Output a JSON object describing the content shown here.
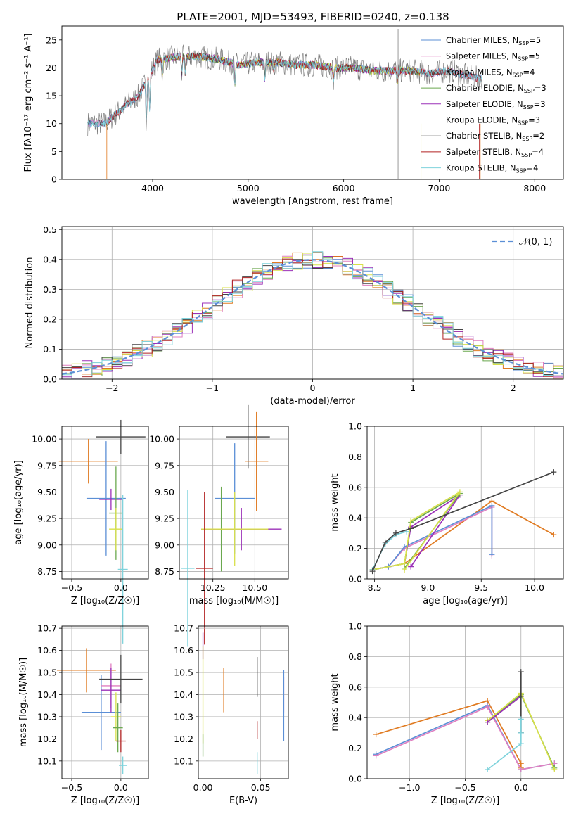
{
  "figure_title": "PLATE=2001, MJD=53493, FIBERID=0240, z=0.138",
  "colors": {
    "Chabrier MILES": "#5b8fd6",
    "Salpeter MILES": "#e07fc0",
    "Kroupa MILES": "#7f7f7f",
    "Chabrier ELODIE": "#6aa84f",
    "Salpeter ELODIE": "#9b30b8",
    "Kroupa ELODIE": "#d8e04a",
    "Chabrier STELIB": "#444444",
    "Salpeter STELIB": "#b22222",
    "Kroupa STELIB": "#7fd3dc",
    "orange": "#e07b22"
  },
  "chart_data": [
    {
      "id": "spectrum",
      "type": "line",
      "xlabel": "wavelength [Angstrom, rest frame]",
      "ylabel": "Flux [fλ10⁻¹⁷ erg cm⁻² s⁻¹ A⁻¹]",
      "xlim": [
        3050,
        8300
      ],
      "ylim": [
        0,
        27.5
      ],
      "xticks": [
        4000,
        5000,
        6000,
        7000,
        8000
      ],
      "yticks": [
        0,
        5,
        10,
        15,
        20,
        25
      ],
      "grid": false,
      "legend_position": "top-right",
      "legend": [
        {
          "name": "Chabrier MILES",
          "nssp": "5"
        },
        {
          "name": "Salpeter MILES",
          "nssp": "5"
        },
        {
          "name": "Kroupa MILES",
          "nssp": "4"
        },
        {
          "name": "Chabrier ELODIE",
          "nssp": "3"
        },
        {
          "name": "Salpeter ELODIE",
          "nssp": "3"
        },
        {
          "name": "Kroupa ELODIE",
          "nssp": "3"
        },
        {
          "name": "Chabrier STELIB",
          "nssp": "2"
        },
        {
          "name": "Salpeter STELIB",
          "nssp": "4"
        },
        {
          "name": "Kroupa STELIB",
          "nssp": "4"
        }
      ],
      "continuum_wavelength": [
        3320,
        3500,
        3700,
        3850,
        3950,
        4050,
        4300,
        4500,
        4700,
        4900,
        5100,
        5300,
        5500,
        5700,
        5900,
        6100,
        6300,
        6500,
        6700,
        6900,
        7100,
        7300,
        7450
      ],
      "continuum_flux": [
        10,
        10,
        13,
        15,
        18,
        21.5,
        22,
        22,
        21.5,
        20.5,
        21,
        21,
        20.5,
        20.5,
        20,
        20,
        19.5,
        19.5,
        19.5,
        19,
        19.5,
        18.5,
        18
      ]
    },
    {
      "id": "residuals",
      "type": "histogram",
      "xlabel": "(data-model)/error",
      "ylabel": "Normed distribution",
      "xlim": [
        -2.5,
        2.5
      ],
      "ylim": [
        0,
        0.51
      ],
      "xticks": [
        -2,
        -1,
        0,
        1,
        2
      ],
      "yticks": [
        0,
        0.1,
        0.2,
        0.3,
        0.4,
        0.5
      ],
      "grid": true,
      "legend_position": "top-right",
      "reference_curve": "𝒩(0, 1)",
      "bin_width": 0.1
    },
    {
      "id": "age-vs-Z",
      "type": "scatter",
      "xlabel": "Z [log₁₀(Z/Z☉)]",
      "ylabel": "age  [log₁₀(age/yr)]",
      "xlim": [
        -0.6,
        0.28
      ],
      "ylim": [
        8.68,
        10.12
      ],
      "xticks": [
        -0.5,
        0
      ],
      "yticks": [
        8.75,
        9.0,
        9.25,
        9.5,
        9.75,
        10.0
      ],
      "grid": true,
      "errorbars": [
        {
          "c": "orange",
          "x": -0.33,
          "xerr": 0.3,
          "y": 9.79,
          "yerr": 0.21
        },
        {
          "c": "Chabrier MILES",
          "x": -0.15,
          "xerr": 0.2,
          "y": 9.44,
          "yerr": 0.54
        },
        {
          "c": "Salpeter ELODIE",
          "x": -0.1,
          "xerr": 0.12,
          "y": 9.43,
          "yerr": 0.1
        },
        {
          "c": "Chabrier ELODIE",
          "x": -0.05,
          "xerr": 0.07,
          "y": 9.3,
          "yerr": 0.44
        },
        {
          "c": "Kroupa ELODIE",
          "x": -0.05,
          "xerr": 0.07,
          "y": 9.15,
          "yerr": 0.2
        },
        {
          "c": "Chabrier STELIB",
          "x": 0.0,
          "xerr": 0.25,
          "y": 10.02,
          "yerr": 0.16
        },
        {
          "c": "Kroupa STELIB",
          "x": 0.02,
          "xerr": 0.05,
          "y": 8.77,
          "yerr": 0.7
        }
      ]
    },
    {
      "id": "age-vs-mass",
      "type": "scatter",
      "xlabel": "mass [log₁₀(M/M☉)]",
      "ylabel": "",
      "xlim": [
        10.05,
        10.7
      ],
      "ylim": [
        8.68,
        10.12
      ],
      "xticks": [
        10.25,
        10.5
      ],
      "yticks": [
        8.75,
        9.0,
        9.25,
        9.5,
        9.75,
        10.0
      ],
      "grid": true,
      "errorbars": [
        {
          "c": "Chabrier STELIB",
          "x": 10.46,
          "xerr": 0.13,
          "y": 10.02,
          "yerr": 0.3
        },
        {
          "c": "orange",
          "x": 10.51,
          "xerr": 0.07,
          "y": 9.79,
          "yerr": 0.47
        },
        {
          "c": "Chabrier MILES",
          "x": 10.38,
          "xerr": 0.12,
          "y": 9.44,
          "yerr": 0.52
        },
        {
          "c": "Salpeter ELODIE",
          "x": 10.42,
          "xerr": 0.24,
          "y": 9.15,
          "yerr": 0.2
        },
        {
          "c": "Chabrier ELODIE",
          "x": 10.3,
          "xerr": 0.02,
          "y": 9.15,
          "yerr": 0.4
        },
        {
          "c": "Kroupa ELODIE",
          "x": 10.38,
          "xerr": 0.2,
          "y": 9.15,
          "yerr": 0.35
        },
        {
          "c": "Salpeter STELIB",
          "x": 10.2,
          "xerr": 0.05,
          "y": 8.78,
          "yerr": 0.72
        },
        {
          "c": "Kroupa STELIB",
          "x": 10.1,
          "xerr": 0.04,
          "y": 8.78,
          "yerr": 0.74
        }
      ]
    },
    {
      "id": "weight-vs-age",
      "type": "line",
      "xlabel": "age  [log₁₀(age/yr)]",
      "ylabel": "mass weight",
      "xlim": [
        8.43,
        10.27
      ],
      "ylim": [
        0,
        1
      ],
      "xticks": [
        8.5,
        9.0,
        9.5,
        10.0
      ],
      "yticks": [
        0,
        0.2,
        0.4,
        0.6,
        0.8,
        1.0
      ],
      "grid": true,
      "series": [
        {
          "c": "orange",
          "x": [
            8.48,
            8.78,
            9.6,
            10.18
          ],
          "y": [
            0.06,
            0.1,
            0.51,
            0.29
          ]
        },
        {
          "c": "Salpeter MILES",
          "x": [
            8.48,
            8.63,
            8.78,
            9.6,
            9.6
          ],
          "y": [
            0.06,
            0.08,
            0.2,
            0.47,
            0.15
          ]
        },
        {
          "c": "Chabrier MILES",
          "x": [
            8.48,
            8.63,
            8.78,
            9.6,
            9.6
          ],
          "y": [
            0.06,
            0.08,
            0.21,
            0.48,
            0.16
          ]
        },
        {
          "c": "Salpeter ELODIE",
          "x": [
            8.78,
            8.84,
            9.3,
            8.84
          ],
          "y": [
            0.1,
            0.34,
            0.55,
            0.08
          ]
        },
        {
          "c": "Chabrier ELODIE",
          "x": [
            8.48,
            8.78,
            8.84,
            9.3,
            8.78
          ],
          "y": [
            0.06,
            0.1,
            0.37,
            0.56,
            0.07
          ]
        },
        {
          "c": "Kroupa ELODIE",
          "x": [
            8.48,
            8.78,
            8.84,
            9.3,
            8.78
          ],
          "y": [
            0.06,
            0.1,
            0.38,
            0.57,
            0.06
          ]
        },
        {
          "c": "Kroupa STELIB",
          "x": [
            8.48,
            8.6,
            8.7,
            8.8
          ],
          "y": [
            0.06,
            0.23,
            0.29,
            0.31
          ]
        },
        {
          "c": "Chabrier STELIB",
          "x": [
            8.48,
            8.6,
            8.7,
            8.84,
            10.18
          ],
          "y": [
            0.05,
            0.24,
            0.3,
            0.33,
            0.7
          ]
        }
      ]
    },
    {
      "id": "mass-vs-Z",
      "type": "scatter",
      "xlabel": "Z [log₁₀(Z/Z☉)]",
      "ylabel": "mass [log₁₀(M/M☉)]",
      "xlim": [
        -0.6,
        0.28
      ],
      "ylim": [
        10.02,
        10.71
      ],
      "xticks": [
        -0.5,
        0
      ],
      "yticks": [
        10.1,
        10.2,
        10.3,
        10.4,
        10.5,
        10.6,
        10.7
      ],
      "grid": true,
      "errorbars": [
        {
          "c": "orange",
          "x": -0.35,
          "xerr": 0.3,
          "y": 10.51,
          "yerr": 0.1
        },
        {
          "c": "Chabrier MILES",
          "x": -0.2,
          "xerr": 0.2,
          "y": 10.32,
          "yerr": 0.17
        },
        {
          "c": "Salpeter MILES",
          "x": -0.1,
          "xerr": 0.1,
          "y": 10.44,
          "yerr": 0.1
        },
        {
          "c": "Salpeter ELODIE",
          "x": -0.1,
          "xerr": 0.1,
          "y": 10.42,
          "yerr": 0.1
        },
        {
          "c": "Kroupa ELODIE",
          "x": -0.05,
          "xerr": 0.05,
          "y": 10.3,
          "yerr": 0.11
        },
        {
          "c": "Chabrier ELODIE",
          "x": -0.03,
          "xerr": 0.05,
          "y": 10.25,
          "yerr": 0.11
        },
        {
          "c": "Chabrier STELIB",
          "x": 0.0,
          "xerr": 0.22,
          "y": 10.47,
          "yerr": 0.11
        },
        {
          "c": "Salpeter STELIB",
          "x": 0.0,
          "xerr": 0.05,
          "y": 10.19,
          "yerr": 0.05
        },
        {
          "c": "Kroupa STELIB",
          "x": 0.02,
          "xerr": 0.04,
          "y": 10.08,
          "yerr": 0.04
        }
      ]
    },
    {
      "id": "mass-vs-ebv",
      "type": "scatter",
      "xlabel": "E(B-V)",
      "ylabel": "",
      "xlim": [
        -0.004,
        0.074
      ],
      "ylim": [
        10.02,
        10.71
      ],
      "xticks": [
        0.0,
        0.05
      ],
      "yticks": [
        10.1,
        10.2,
        10.3,
        10.4,
        10.5,
        10.6,
        10.7
      ],
      "grid": true,
      "errorbars": [
        {
          "c": "Salpeter ELODIE",
          "x": 0.0,
          "xerr": 0.0,
          "y": 10.62,
          "yerr": 0.06
        },
        {
          "c": "Kroupa ELODIE",
          "x": 0.0,
          "xerr": 0.0,
          "y": 10.4,
          "yerr": 0.22
        },
        {
          "c": "Chabrier ELODIE",
          "x": 0.0,
          "xerr": 0.0,
          "y": 10.17,
          "yerr": 0.05
        },
        {
          "c": "orange",
          "x": 0.018,
          "xerr": 0.0,
          "y": 10.42,
          "yerr": 0.1
        },
        {
          "c": "Chabrier STELIB",
          "x": 0.047,
          "xerr": 0.0,
          "y": 10.48,
          "yerr": 0.09
        },
        {
          "c": "Salpeter STELIB",
          "x": 0.047,
          "xerr": 0.0,
          "y": 10.24,
          "yerr": 0.04
        },
        {
          "c": "Kroupa STELIB",
          "x": 0.047,
          "xerr": 0.0,
          "y": 10.09,
          "yerr": 0.05
        },
        {
          "c": "Salpeter MILES",
          "x": 0.07,
          "xerr": 0.0,
          "y": 10.4,
          "yerr": 0.08
        },
        {
          "c": "Chabrier MILES",
          "x": 0.07,
          "xerr": 0.0,
          "y": 10.35,
          "yerr": 0.16
        }
      ]
    },
    {
      "id": "weight-vs-Z",
      "type": "line",
      "xlabel": "Z [log₁₀(Z/Z☉)]",
      "ylabel": "mass weight",
      "xlim": [
        -1.38,
        0.38
      ],
      "ylim": [
        0,
        1
      ],
      "xticks": [
        -1.0,
        -0.5,
        0.0
      ],
      "yticks": [
        0,
        0.2,
        0.4,
        0.6,
        0.8,
        1.0
      ],
      "grid": true,
      "series": [
        {
          "c": "orange",
          "x": [
            -1.3,
            -0.3,
            0.0,
            0.0
          ],
          "y": [
            0.29,
            0.51,
            0.1,
            0.07
          ]
        },
        {
          "c": "Chabrier MILES",
          "x": [
            -1.3,
            -0.3,
            0.0,
            0.3
          ],
          "y": [
            0.16,
            0.48,
            0.06,
            0.1
          ]
        },
        {
          "c": "Salpeter MILES",
          "x": [
            -1.3,
            -0.3,
            0.0,
            0.3
          ],
          "y": [
            0.15,
            0.47,
            0.06,
            0.1
          ]
        },
        {
          "c": "Chabrier ELODIE",
          "x": [
            -0.3,
            0.0,
            0.3
          ],
          "y": [
            0.37,
            0.55,
            0.07
          ]
        },
        {
          "c": "Kroupa ELODIE",
          "x": [
            -0.3,
            0.0,
            0.3
          ],
          "y": [
            0.38,
            0.56,
            0.06
          ]
        },
        {
          "c": "Salpeter ELODIE",
          "x": [
            -0.3,
            0.0
          ],
          "y": [
            0.37,
            0.54
          ]
        },
        {
          "c": "Chabrier STELIB",
          "x": [
            0.0,
            0.0,
            0.0
          ],
          "y": [
            0.7,
            0.54,
            0.3
          ]
        },
        {
          "c": "Kroupa STELIB",
          "x": [
            -0.3,
            0.0,
            0.0,
            0.0
          ],
          "y": [
            0.06,
            0.23,
            0.3,
            0.39
          ]
        }
      ]
    }
  ]
}
